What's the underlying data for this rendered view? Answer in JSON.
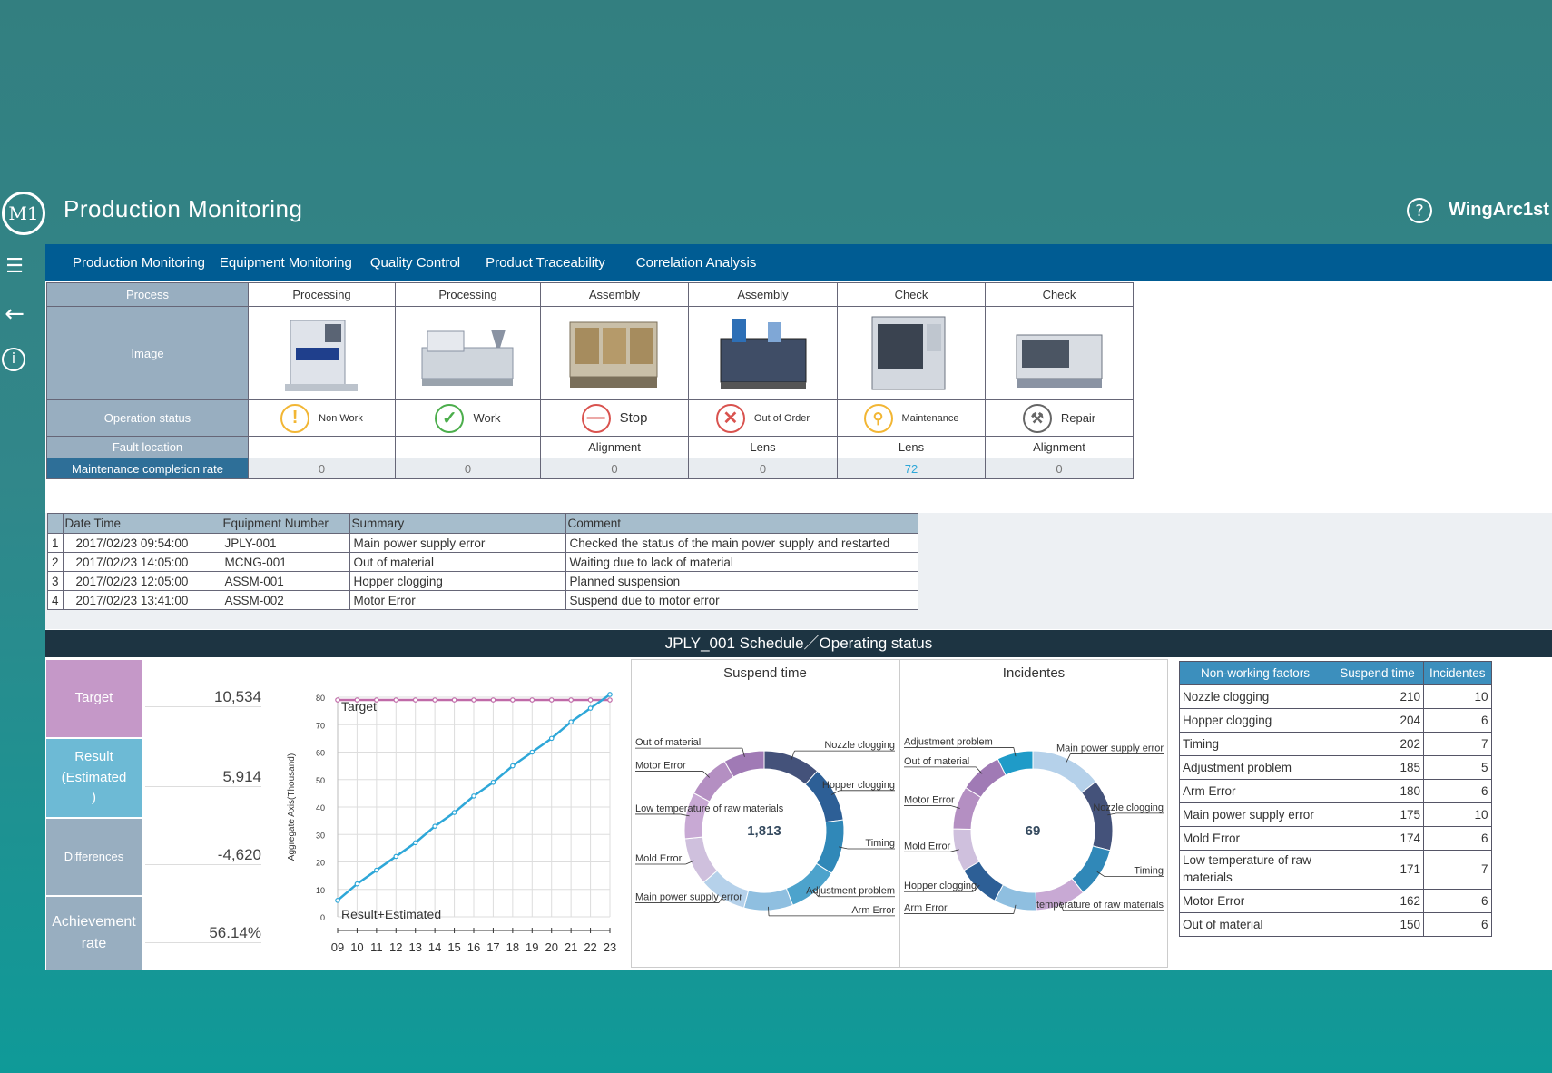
{
  "header": {
    "logo": "M1",
    "title": "Production Monitoring",
    "help_icon": "question-icon",
    "brand": "WingArc1st"
  },
  "nav": {
    "items": [
      "Production Monitoring",
      "Equipment Monitoring",
      "Quality Control",
      "Product Traceability",
      "Correlation Analysis"
    ]
  },
  "side": {
    "icons": [
      "menu-icon",
      "back-arrow-icon",
      "info-icon"
    ]
  },
  "process": {
    "labels": {
      "process": "Process",
      "image": "Image",
      "status": "Operation status",
      "fault": "Fault location",
      "rate": "Maintenance completion rate"
    },
    "columns": [
      {
        "process": "Processing",
        "status": "Non Work",
        "status_icon": "warning-icon",
        "fault": "",
        "rate": "0",
        "color": "#f2b634"
      },
      {
        "process": "Processing",
        "status": "Work",
        "status_icon": "check-icon",
        "fault": "",
        "rate": "0",
        "color": "#4cae4c"
      },
      {
        "process": "Assembly",
        "status": "Stop",
        "status_icon": "stop-icon",
        "fault": "Alignment",
        "rate": "0",
        "color": "#d9534f"
      },
      {
        "process": "Assembly",
        "status": "Out of Order",
        "status_icon": "x-icon",
        "fault": "Lens",
        "rate": "0",
        "color": "#d9534f"
      },
      {
        "process": "Check",
        "status": "Maintenance",
        "status_icon": "magnifier-icon",
        "fault": "Lens",
        "rate": "72",
        "color": "#f2b634"
      },
      {
        "process": "Check",
        "status": "Repair",
        "status_icon": "wrench-icon",
        "fault": "Alignment",
        "rate": "0",
        "color": "#666666"
      }
    ]
  },
  "log": {
    "headers": [
      "Date Time",
      "Equipment Number",
      "Summary",
      "Comment"
    ],
    "rows": [
      {
        "n": "1",
        "dt": "2017/02/23 09:54:00",
        "eq": "JPLY-001",
        "sum": "Main power supply error",
        "cm": "Checked the status of the main power supply and restarted"
      },
      {
        "n": "2",
        "dt": "2017/02/23 14:05:00",
        "eq": "MCNG-001",
        "sum": "Out of material",
        "cm": "Waiting due to lack of material"
      },
      {
        "n": "3",
        "dt": "2017/02/23 12:05:00",
        "eq": "ASSM-001",
        "sum": "Hopper clogging",
        "cm": "Planned suspension"
      },
      {
        "n": "4",
        "dt": "2017/02/23 13:41:00",
        "eq": "ASSM-002",
        "sum": "Motor Error",
        "cm": "Suspend due to motor error"
      }
    ]
  },
  "schedule": {
    "title": "JPLY_001 Schedule／Operating status"
  },
  "kpis": [
    {
      "label": "Target",
      "value": "10,534",
      "color": "#c598c8"
    },
    {
      "label": "Result\n(Estimated\n)",
      "value": "5,914",
      "color": "#6dbad5"
    },
    {
      "label": "Differences",
      "value": "-4,620",
      "color": "#98aec0"
    },
    {
      "label": "Achievement rate",
      "value": "56.14%",
      "color": "#98aec0"
    }
  ],
  "chart_data": [
    {
      "type": "line",
      "ylabel": "Aggregate Axis(Thousand)",
      "categories": [
        "09",
        "10",
        "11",
        "12",
        "13",
        "14",
        "15",
        "16",
        "17",
        "18",
        "19",
        "20",
        "21",
        "22",
        "23"
      ],
      "ylim": [
        0,
        80
      ],
      "yticks": [
        0,
        10,
        20,
        30,
        40,
        50,
        60,
        70,
        80
      ],
      "series": [
        {
          "name": "Target",
          "values": [
            79,
            79,
            79,
            79,
            79,
            79,
            79,
            79,
            79,
            79,
            79,
            79,
            79,
            79,
            79
          ],
          "color": "#c06aa8"
        },
        {
          "name": "Result+Estimated",
          "values": [
            6,
            12,
            17,
            22,
            27,
            33,
            38,
            44,
            49,
            55,
            60,
            65,
            71,
            76,
            81
          ],
          "color": "#2ea7d8"
        }
      ]
    },
    {
      "type": "pie",
      "title": "Suspend time",
      "center_label": "1,813",
      "labels": [
        "Nozzle clogging",
        "Hopper clogging",
        "Timing",
        "Adjustment problem",
        "Arm Error",
        "Main power supply error",
        "Mold Error",
        "Low temperature of raw materials",
        "Motor Error",
        "Out of material"
      ],
      "values": [
        210,
        204,
        202,
        185,
        180,
        175,
        174,
        171,
        162,
        150
      ]
    },
    {
      "type": "pie",
      "title": "Incidentes",
      "center_label": "69",
      "labels": [
        "Main power supply error",
        "Nozzle clogging",
        "Timing",
        "Low temperature of raw materials",
        "Arm Error",
        "Hopper clogging",
        "Mold Error",
        "Motor Error",
        "Out of material",
        "Adjustment problem"
      ],
      "values": [
        10,
        10,
        7,
        7,
        6,
        6,
        6,
        6,
        6,
        5
      ]
    }
  ],
  "pie_colors": [
    "#44527a",
    "#2d5f96",
    "#3088b8",
    "#4da3cc",
    "#8fbfe0",
    "#b5d1ea",
    "#cfc0dd",
    "#c8a9d4",
    "#b48fc2",
    "#a07ab5"
  ],
  "pie_colors2": [
    "#b5d1ea",
    "#44527a",
    "#3088b8",
    "#c8a9d4",
    "#8fbfe0",
    "#2d5f96",
    "#cfc0dd",
    "#b48fc2",
    "#a07ab5",
    "#1f9bc8"
  ],
  "factors": {
    "headers": [
      "Non-working factors",
      "Suspend time",
      "Incidentes"
    ],
    "rows": [
      [
        "Nozzle clogging",
        "210",
        "10"
      ],
      [
        "Hopper clogging",
        "204",
        "6"
      ],
      [
        "Timing",
        "202",
        "7"
      ],
      [
        "Adjustment problem",
        "185",
        "5"
      ],
      [
        "Arm Error",
        "180",
        "6"
      ],
      [
        "Main power supply error",
        "175",
        "10"
      ],
      [
        "Mold Error",
        "174",
        "6"
      ],
      [
        "Low temperature of raw materials",
        "171",
        "7"
      ],
      [
        "Motor Error",
        "162",
        "6"
      ],
      [
        "Out of material",
        "150",
        "6"
      ]
    ]
  }
}
